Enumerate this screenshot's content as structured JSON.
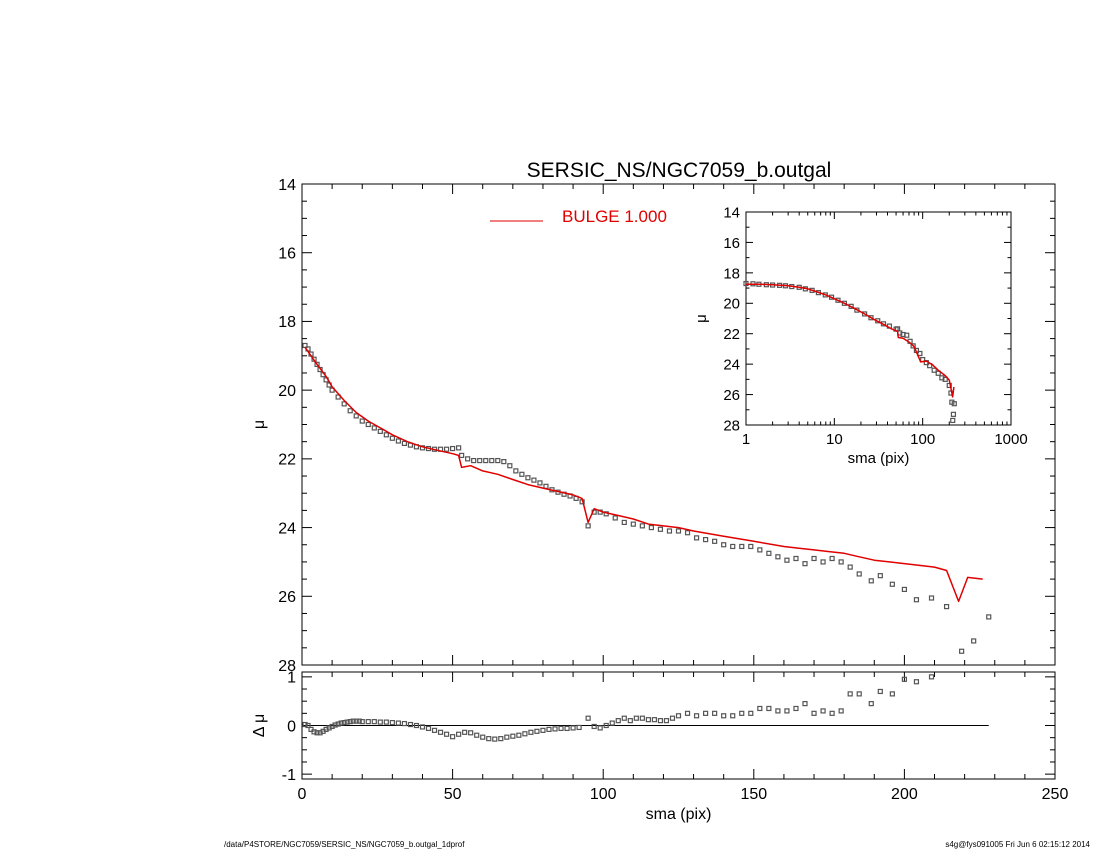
{
  "footer": {
    "path": "/data/P4STORE/NGC7059/SERSIC_NS/NGC7059_b.outgal_1dprof",
    "stamp": "s4g@fys091005  Fri Jun  6 02:15:12 2014"
  },
  "colors": {
    "model": "#e00000",
    "data": "#555555",
    "axes": "#000000"
  },
  "chart_data": [
    {
      "id": "main",
      "type": "scatter",
      "title": "SERSIC_NS/NGC7059_b.outgal",
      "xlabel": "",
      "ylabel": "μ",
      "xlim": [
        0,
        250
      ],
      "ylim": [
        14,
        28
      ],
      "y_inverted": true,
      "yticks": [
        14,
        16,
        18,
        20,
        22,
        24,
        26,
        28
      ],
      "legend": {
        "label": "BULGE  1.000",
        "placement": "top-center"
      },
      "series": [
        {
          "name": "",
          "kind": "points",
          "x": [
            1,
            2,
            3,
            4,
            5,
            6,
            7,
            8,
            9,
            10,
            12,
            14,
            16,
            18,
            20,
            22,
            24,
            26,
            28,
            30,
            32,
            34,
            36,
            38,
            40,
            42,
            44,
            46,
            48,
            50,
            52,
            53,
            55,
            57,
            59,
            61,
            63,
            65,
            67,
            69,
            71,
            73,
            75,
            77,
            79,
            81,
            83,
            85,
            87,
            89,
            91,
            93,
            95,
            97,
            99,
            101,
            104,
            107,
            110,
            113,
            116,
            119,
            122,
            125,
            128,
            131,
            134,
            137,
            140,
            143,
            146,
            149,
            152,
            155,
            158,
            161,
            164,
            167,
            170,
            173,
            176,
            179,
            182,
            185,
            189,
            192,
            196,
            200,
            204,
            209,
            214,
            219,
            223,
            228
          ],
          "y": [
            18.7,
            18.8,
            18.95,
            19.1,
            19.25,
            19.4,
            19.55,
            19.7,
            19.85,
            20.0,
            20.2,
            20.4,
            20.6,
            20.75,
            20.9,
            21.0,
            21.1,
            21.2,
            21.3,
            21.4,
            21.48,
            21.55,
            21.6,
            21.65,
            21.68,
            21.7,
            21.72,
            21.72,
            21.72,
            21.7,
            21.68,
            21.9,
            22.0,
            22.05,
            22.05,
            22.05,
            22.05,
            22.05,
            22.08,
            22.2,
            22.35,
            22.45,
            22.55,
            22.62,
            22.7,
            22.8,
            22.9,
            22.97,
            23.03,
            23.08,
            23.15,
            23.25,
            23.95,
            23.55,
            23.55,
            23.6,
            23.72,
            23.85,
            23.9,
            23.95,
            24.0,
            24.05,
            24.1,
            24.1,
            24.15,
            24.3,
            24.35,
            24.4,
            24.5,
            24.55,
            24.55,
            24.55,
            24.65,
            24.75,
            24.85,
            24.95,
            24.9,
            25.05,
            24.9,
            25.0,
            24.9,
            25.0,
            25.15,
            25.35,
            25.55,
            25.4,
            25.65,
            25.8,
            26.1,
            26.05,
            26.3,
            27.6,
            27.3,
            26.6
          ]
        },
        {
          "name": "BULGE  1.000",
          "kind": "line",
          "x": [
            1,
            3,
            5,
            8,
            10,
            14,
            18,
            22,
            26,
            30,
            35,
            40,
            45,
            50,
            52,
            53,
            56,
            60,
            65,
            70,
            75,
            80,
            85,
            90,
            93,
            95,
            97,
            100,
            105,
            110,
            115,
            120,
            125,
            130,
            140,
            150,
            160,
            165,
            170,
            175,
            180,
            185,
            190,
            195,
            200,
            205,
            210,
            214,
            218,
            221,
            226
          ],
          "y": [
            18.75,
            19.0,
            19.25,
            19.6,
            19.9,
            20.3,
            20.65,
            20.9,
            21.1,
            21.3,
            21.5,
            21.65,
            21.75,
            21.85,
            21.9,
            22.25,
            22.2,
            22.35,
            22.45,
            22.6,
            22.75,
            22.85,
            22.95,
            23.05,
            23.15,
            23.85,
            23.45,
            23.55,
            23.65,
            23.75,
            23.9,
            23.95,
            24.0,
            24.1,
            24.25,
            24.4,
            24.55,
            24.6,
            24.65,
            24.7,
            24.75,
            24.85,
            24.95,
            25.0,
            25.05,
            25.1,
            25.15,
            25.25,
            26.15,
            25.45,
            25.5
          ]
        }
      ]
    },
    {
      "id": "residual",
      "type": "scatter",
      "xlabel": "sma (pix)",
      "ylabel": "Δ μ",
      "xlim": [
        0,
        250
      ],
      "ylim": [
        -1.1,
        1.1
      ],
      "yticks": [
        -1,
        0,
        1
      ],
      "xticks": [
        0,
        50,
        100,
        150,
        200,
        250
      ],
      "reference_line": 0,
      "series": [
        {
          "name": "",
          "kind": "points",
          "x": [
            1,
            2,
            3,
            4,
            5,
            6,
            7,
            8,
            9,
            10,
            11,
            12,
            13,
            14,
            15,
            16,
            17,
            18,
            19,
            20,
            22,
            24,
            26,
            28,
            30,
            32,
            34,
            36,
            38,
            40,
            42,
            44,
            46,
            48,
            50,
            52,
            54,
            56,
            58,
            60,
            62,
            64,
            66,
            68,
            70,
            72,
            74,
            76,
            78,
            80,
            82,
            84,
            86,
            88,
            90,
            92,
            95,
            97,
            99,
            101,
            103,
            105,
            107,
            109,
            111,
            113,
            115,
            117,
            119,
            121,
            123,
            125,
            128,
            131,
            134,
            137,
            140,
            143,
            146,
            149,
            152,
            155,
            158,
            161,
            164,
            167,
            170,
            173,
            176,
            179,
            182,
            185,
            189,
            192,
            196,
            200,
            204,
            209
          ],
          "y": [
            0.02,
            0.0,
            -0.08,
            -0.13,
            -0.15,
            -0.15,
            -0.12,
            -0.08,
            -0.05,
            -0.02,
            0.01,
            0.03,
            0.05,
            0.06,
            0.07,
            0.08,
            0.09,
            0.09,
            0.09,
            0.08,
            0.08,
            0.08,
            0.07,
            0.07,
            0.06,
            0.05,
            0.04,
            0.02,
            0.0,
            -0.03,
            -0.06,
            -0.1,
            -0.14,
            -0.18,
            -0.23,
            -0.18,
            -0.14,
            -0.15,
            -0.2,
            -0.24,
            -0.27,
            -0.28,
            -0.27,
            -0.24,
            -0.22,
            -0.2,
            -0.17,
            -0.14,
            -0.12,
            -0.1,
            -0.08,
            -0.07,
            -0.06,
            -0.06,
            -0.05,
            -0.04,
            0.15,
            -0.02,
            -0.05,
            0.0,
            0.05,
            0.1,
            0.15,
            0.1,
            0.15,
            0.15,
            0.12,
            0.12,
            0.1,
            0.1,
            0.15,
            0.2,
            0.25,
            0.2,
            0.25,
            0.25,
            0.2,
            0.2,
            0.25,
            0.25,
            0.35,
            0.35,
            0.3,
            0.3,
            0.35,
            0.45,
            0.25,
            0.3,
            0.25,
            0.3,
            0.65,
            0.65,
            0.45,
            0.7,
            0.65,
            0.95,
            0.9,
            1.0
          ]
        }
      ]
    },
    {
      "id": "inset",
      "type": "scatter",
      "xlabel": "sma (pix)",
      "ylabel": "μ",
      "x_scale": "log",
      "xlim": [
        1,
        1000
      ],
      "ylim": [
        14,
        28
      ],
      "y_inverted": true,
      "yticks": [
        14,
        16,
        18,
        20,
        22,
        24,
        26,
        28
      ],
      "xticks": [
        1,
        10,
        100,
        1000
      ],
      "series": [
        {
          "name": "",
          "kind": "points",
          "x": [
            1.0,
            1.2,
            1.4,
            1.7,
            2.0,
            2.4,
            2.8,
            3.3,
            4.0,
            4.7,
            5.6,
            6.6,
            7.9,
            9.3,
            11,
            13,
            15.5,
            18,
            22,
            26,
            31,
            36,
            42,
            50,
            52,
            55,
            60,
            66,
            72,
            78,
            85,
            93,
            100,
            110,
            120,
            135,
            150,
            165,
            180,
            200,
            209,
            214,
            219,
            223,
            228
          ],
          "y": [
            18.7,
            18.72,
            18.75,
            18.78,
            18.8,
            18.82,
            18.85,
            18.9,
            18.95,
            19.05,
            19.15,
            19.3,
            19.45,
            19.6,
            19.8,
            20.0,
            20.2,
            20.45,
            20.7,
            20.95,
            21.15,
            21.35,
            21.5,
            21.7,
            21.68,
            21.95,
            22.05,
            22.1,
            22.5,
            22.8,
            23.1,
            23.3,
            23.7,
            23.9,
            24.1,
            24.4,
            24.6,
            24.9,
            25.0,
            25.4,
            25.9,
            26.5,
            27.7,
            27.3,
            26.6
          ]
        },
        {
          "name": "",
          "kind": "line",
          "x": [
            1.0,
            1.5,
            2.0,
            3.0,
            4.0,
            5.0,
            6.0,
            8.0,
            10,
            13,
            17,
            22,
            28,
            35,
            45,
            52,
            53,
            60,
            70,
            80,
            95,
            110,
            130,
            150,
            180,
            200,
            218,
            226
          ],
          "y": [
            18.75,
            18.75,
            18.78,
            18.85,
            18.95,
            19.05,
            19.2,
            19.45,
            19.7,
            20.0,
            20.35,
            20.7,
            21.05,
            21.35,
            21.7,
            21.85,
            22.25,
            22.3,
            22.55,
            22.85,
            23.85,
            23.8,
            24.05,
            24.4,
            24.75,
            25.05,
            26.15,
            25.5
          ]
        }
      ]
    }
  ]
}
